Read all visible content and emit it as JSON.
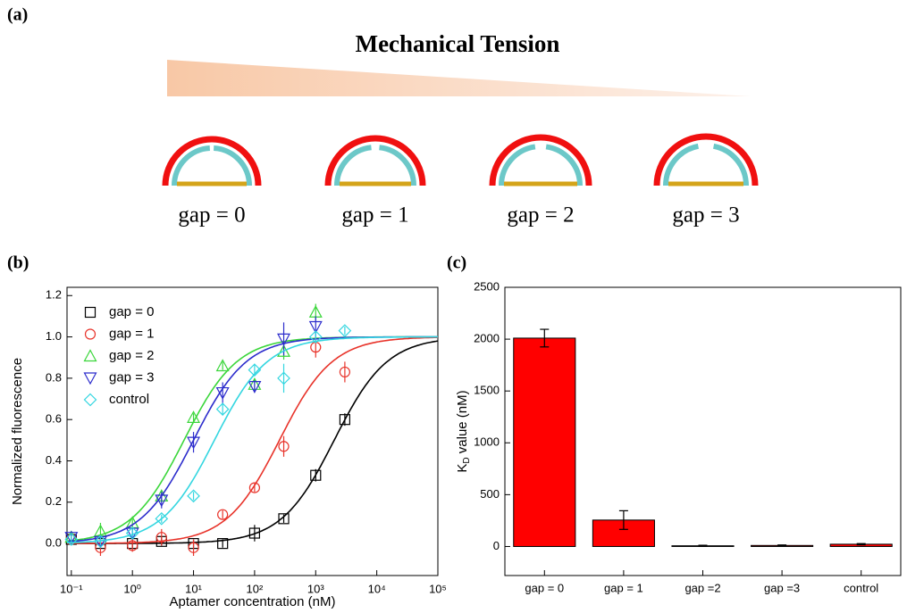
{
  "panel_a": {
    "label": "(a)",
    "title": "Mechanical Tension",
    "gaps": [
      "gap = 0",
      "gap = 1",
      "gap = 2",
      "gap = 3"
    ]
  },
  "chart_data": [
    {
      "type": "scatter",
      "panel_label": "(b)",
      "xlabel": "Aptamer concentration (nM)",
      "ylabel": "Normalized fluorescence",
      "xscale": "log",
      "xlim": [
        0.085,
        100000
      ],
      "ylim": [
        -0.155,
        1.24
      ],
      "xticks": [
        {
          "value": 0.1,
          "label": "10⁻¹"
        },
        {
          "value": 1,
          "label": "10⁰"
        },
        {
          "value": 10,
          "label": "10¹"
        },
        {
          "value": 100,
          "label": "10²"
        },
        {
          "value": 1000,
          "label": "10³"
        },
        {
          "value": 10000,
          "label": "10⁴"
        },
        {
          "value": 100000,
          "label": "10⁵"
        }
      ],
      "yticks": [
        {
          "value": 0,
          "label": "0.0"
        },
        0.2,
        0.4,
        0.6,
        0.8,
        {
          "value": 1,
          "label": "1.0"
        },
        1.2
      ],
      "x": [
        0.1,
        0.3,
        1,
        3,
        10,
        30,
        100,
        300,
        1000,
        3000
      ],
      "series": [
        {
          "name": "gap = 0",
          "color": "#000000",
          "marker": "square",
          "values": [
            0.02,
            0.0,
            0.0,
            0.01,
            0.0,
            0.0,
            0.05,
            0.12,
            0.33,
            0.6
          ],
          "errors": [
            0.02,
            0.02,
            0.02,
            0.02,
            0.02,
            0.02,
            0.04,
            0.02,
            0.03,
            0.03
          ]
        },
        {
          "name": "gap = 1",
          "color": "#e8332a",
          "marker": "circle",
          "values": [
            0.02,
            -0.02,
            -0.01,
            0.03,
            -0.02,
            0.14,
            0.27,
            0.47,
            0.95,
            0.83
          ],
          "errors": [
            0.02,
            0.04,
            0.03,
            0.04,
            0.04,
            0.02,
            0.02,
            0.05,
            0.05,
            0.05
          ]
        },
        {
          "name": "gap = 2",
          "color": "#3ad63a",
          "marker": "triangle-up",
          "values": [
            0.03,
            0.06,
            0.1,
            0.23,
            0.61,
            0.86,
            0.77,
            0.93,
            1.12,
            null
          ],
          "errors": [
            0.03,
            0.04,
            0.02,
            0.03,
            0.02,
            0.02,
            0.03,
            0.04,
            0.04,
            null
          ]
        },
        {
          "name": "gap = 3",
          "color": "#2c2ccc",
          "marker": "triangle-down",
          "values": [
            0.03,
            0.01,
            0.05,
            0.21,
            0.49,
            0.73,
            0.76,
            0.99,
            1.05,
            null
          ],
          "errors": [
            0.03,
            0.03,
            0.03,
            0.04,
            0.05,
            0.05,
            0.03,
            0.08,
            0.05,
            null
          ]
        },
        {
          "name": "control",
          "color": "#33d6e0",
          "marker": "diamond",
          "values": [
            0.02,
            0.01,
            0.05,
            0.12,
            0.23,
            0.65,
            0.84,
            0.8,
            1.0,
            1.03
          ],
          "errors": [
            0.02,
            0.02,
            0.02,
            0.02,
            0.02,
            0.03,
            0.03,
            0.07,
            0.03,
            0.02
          ]
        }
      ]
    },
    {
      "type": "bar",
      "panel_label": "(c)",
      "ylabel": [
        "K",
        "D",
        " value (nM)"
      ],
      "color": "#ff0000",
      "categories": [
        "gap = 0",
        "gap = 1",
        "gap =2",
        "gap =3",
        "control"
      ],
      "values": [
        2010,
        255,
        7,
        10,
        22
      ],
      "errors": [
        85,
        90,
        5,
        5,
        6
      ],
      "ylim": [
        -280,
        2500
      ],
      "yticks": [
        0,
        500,
        1000,
        1500,
        2000,
        2500
      ]
    }
  ]
}
